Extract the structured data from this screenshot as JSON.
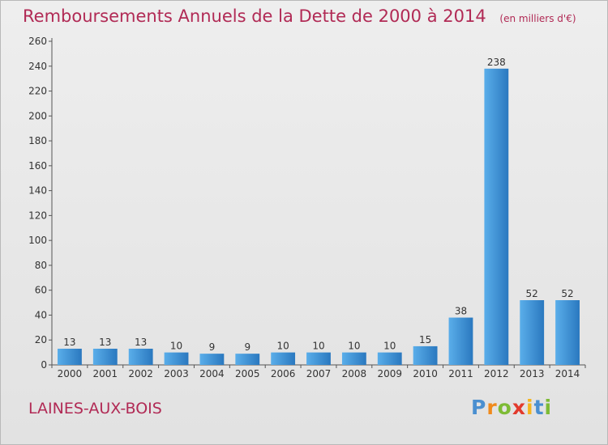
{
  "header": {
    "title": "Remboursements Annuels de la Dette de 2000 à 2014",
    "unit": "(en milliers d'€)"
  },
  "commune": "LAINES-AUX-BOIS",
  "logo": {
    "text": "Proxiti"
  },
  "colors": {
    "bar_top": "#5aaeea",
    "bar_bottom": "#2a78bf",
    "title": "#b12a55"
  },
  "chart_data": {
    "type": "bar",
    "title": "Remboursements Annuels de la Dette de 2000 à 2014",
    "subtitle": "(en milliers d'€)",
    "categories": [
      "2000",
      "2001",
      "2002",
      "2003",
      "2004",
      "2005",
      "2006",
      "2007",
      "2008",
      "2009",
      "2010",
      "2011",
      "2012",
      "2013",
      "2014"
    ],
    "values": [
      13,
      13,
      13,
      10,
      9,
      9,
      10,
      10,
      10,
      10,
      15,
      38,
      238,
      52,
      52
    ],
    "ylim": [
      0,
      260
    ],
    "yticks": [
      0,
      20,
      40,
      60,
      80,
      100,
      120,
      140,
      160,
      180,
      200,
      220,
      240,
      260
    ],
    "grid": false,
    "legend": "none"
  }
}
